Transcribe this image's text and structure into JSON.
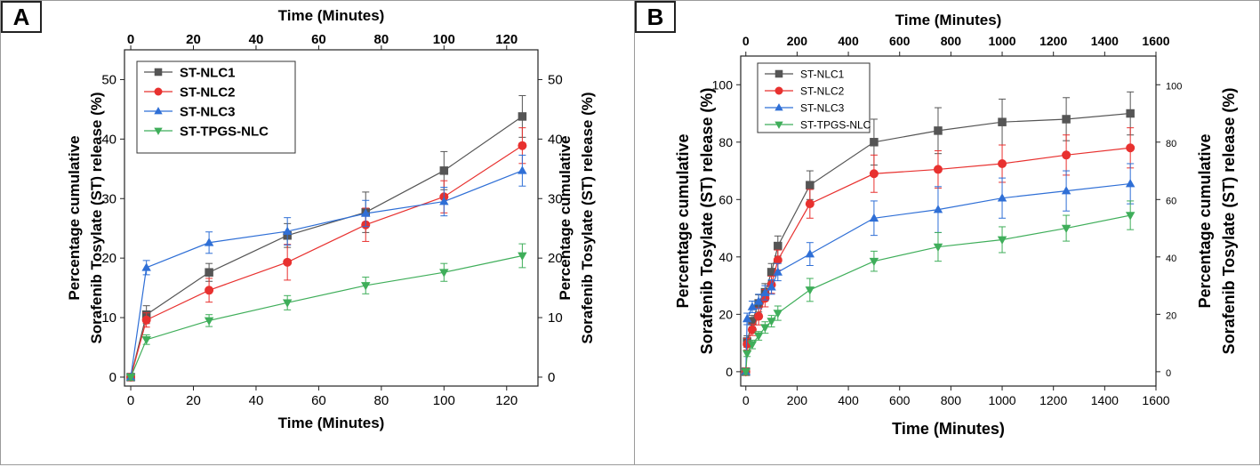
{
  "panels": [
    {
      "label": "A"
    },
    {
      "label": "B"
    }
  ],
  "chart_data": [
    {
      "type": "line",
      "panel": "A",
      "title": "",
      "xlabel": "Time (Minutes)",
      "xlabel_top": "Time (Minutes)",
      "ylabel": [
        "Percentage cumulative",
        "Sorafenib Tosylate (ST) release (%)"
      ],
      "ylabel_right": [
        "Percentage cumulative",
        "Sorafenib Tosylate (ST) release (%)"
      ],
      "xlim": [
        -2,
        130
      ],
      "ylim": [
        -1.5,
        55
      ],
      "xticks": [
        0,
        20,
        40,
        60,
        80,
        100,
        120
      ],
      "yticks": [
        0,
        10,
        20,
        30,
        40,
        50
      ],
      "x": [
        0,
        5,
        25,
        50,
        75,
        100,
        125
      ],
      "legend_position": "top-left",
      "series": [
        {
          "name": "ST-NLC1",
          "color": "#555555",
          "marker": "square",
          "values": [
            0,
            10.5,
            17.6,
            23.8,
            27.7,
            34.7,
            43.8
          ],
          "errors": [
            0.5,
            1.5,
            1.5,
            2.0,
            3.4,
            3.2,
            3.5
          ]
        },
        {
          "name": "ST-NLC2",
          "color": "#e8312f",
          "marker": "circle",
          "values": [
            0,
            9.6,
            14.6,
            19.3,
            25.6,
            30.3,
            38.9
          ],
          "errors": [
            0.5,
            1.2,
            2.0,
            3.0,
            2.8,
            2.7,
            3.0
          ]
        },
        {
          "name": "ST-NLC3",
          "color": "#2f6fd6",
          "marker": "triangle-up",
          "values": [
            0,
            18.4,
            22.6,
            24.5,
            27.5,
            29.5,
            34.7
          ],
          "errors": [
            0.5,
            1.2,
            1.8,
            2.3,
            2.2,
            2.4,
            2.6
          ]
        },
        {
          "name": "ST-TPGS-NLC",
          "color": "#3fae5a",
          "marker": "triangle-down",
          "values": [
            0,
            6.3,
            9.5,
            12.5,
            15.4,
            17.6,
            20.4
          ],
          "errors": [
            0.5,
            0.8,
            1.0,
            1.2,
            1.4,
            1.5,
            2.0
          ]
        }
      ]
    },
    {
      "type": "line",
      "panel": "B",
      "title": "",
      "xlabel": "Time (Minutes)",
      "xlabel_top": "Time (Minutes)",
      "ylabel": [
        "Percentage cumulative",
        "Sorafenib Tosylate (ST) release (%)"
      ],
      "ylabel_right": [
        "Percentage cumulative",
        "Sorafenib Tosylate (ST) release (%)"
      ],
      "xlim": [
        -20,
        1600
      ],
      "ylim": [
        -5,
        110
      ],
      "xticks": [
        0,
        200,
        400,
        600,
        800,
        1000,
        1200,
        1400,
        1600
      ],
      "yticks": [
        0,
        20,
        40,
        60,
        80,
        100
      ],
      "x": [
        0,
        5,
        25,
        50,
        75,
        100,
        125,
        250,
        500,
        750,
        1000,
        1250,
        1500
      ],
      "legend_position": "top-left",
      "series": [
        {
          "name": "ST-NLC1",
          "color": "#555555",
          "marker": "square",
          "values": [
            0,
            10.5,
            17.6,
            23.8,
            27.7,
            34.7,
            43.8,
            65,
            80,
            84,
            87,
            88,
            90
          ],
          "errors": [
            1,
            2,
            2,
            3,
            3,
            3,
            3.5,
            5,
            8,
            8,
            8,
            7.5,
            7.5
          ]
        },
        {
          "name": "ST-NLC2",
          "color": "#e8312f",
          "marker": "circle",
          "values": [
            0,
            9.6,
            14.6,
            19.3,
            25.6,
            30.3,
            38.9,
            58.5,
            69,
            70.5,
            72.5,
            75.5,
            78
          ],
          "errors": [
            1,
            2,
            2,
            3,
            3,
            3,
            3.5,
            5,
            6.5,
            6.5,
            6.5,
            7,
            7
          ]
        },
        {
          "name": "ST-NLC3",
          "color": "#2f6fd6",
          "marker": "triangle-up",
          "values": [
            0,
            18.4,
            22.6,
            24.5,
            27.5,
            29.5,
            34.7,
            41,
            53.5,
            56.5,
            60.5,
            63,
            65.5
          ],
          "errors": [
            1,
            2,
            2,
            2.5,
            2.5,
            2.5,
            3,
            4,
            6,
            8,
            7,
            7,
            7
          ]
        },
        {
          "name": "ST-TPGS-NLC",
          "color": "#3fae5a",
          "marker": "triangle-down",
          "values": [
            0,
            6.3,
            9.5,
            12.5,
            15.4,
            17.6,
            20.4,
            28.5,
            38.5,
            43.5,
            46,
            50,
            54.5
          ],
          "errors": [
            1,
            1,
            1.5,
            1.5,
            2,
            2,
            2.5,
            4,
            3.5,
            5,
            4.5,
            4.5,
            5
          ]
        }
      ]
    }
  ]
}
